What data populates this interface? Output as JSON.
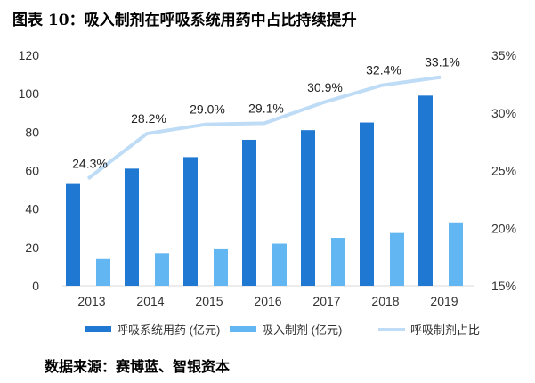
{
  "title": "图表 10：吸入制剂在呼吸系统用药中占比持续提升",
  "source": "数据来源：赛博蓝、智银资本",
  "chart_data": {
    "type": "bar",
    "categories": [
      "2013",
      "2014",
      "2015",
      "2016",
      "2017",
      "2018",
      "2019"
    ],
    "series": [
      {
        "name": "呼吸系统用药 (亿元)",
        "type": "bar",
        "axis": "left",
        "color": "#1f78d1",
        "values": [
          53,
          61,
          67,
          76,
          81,
          85,
          99
        ]
      },
      {
        "name": "吸入制剂 (亿元)",
        "type": "bar",
        "axis": "left",
        "color": "#62b7f2",
        "values": [
          14,
          17,
          19.5,
          22,
          25,
          27.5,
          33
        ]
      },
      {
        "name": "呼吸制剂占比",
        "type": "line",
        "axis": "right",
        "color": "#bfdcf6",
        "values": [
          24.3,
          28.2,
          29.0,
          29.1,
          30.9,
          32.4,
          33.1
        ],
        "labels": [
          "24.3%",
          "28.2%",
          "29.0%",
          "29.1%",
          "30.9%",
          "32.4%",
          "33.1%"
        ]
      }
    ],
    "y_left": {
      "min": 0,
      "max": 120,
      "ticks": [
        0,
        20,
        40,
        60,
        80,
        100,
        120
      ],
      "tick_labels": [
        "0",
        "20",
        "40",
        "60",
        "80",
        "100",
        "120"
      ]
    },
    "y_right": {
      "min": 15,
      "max": 35,
      "ticks": [
        15,
        20,
        25,
        30,
        35
      ],
      "tick_labels": [
        "15%",
        "20%",
        "25%",
        "30%",
        "35%"
      ]
    },
    "grid": false,
    "legend_position": "bottom"
  }
}
